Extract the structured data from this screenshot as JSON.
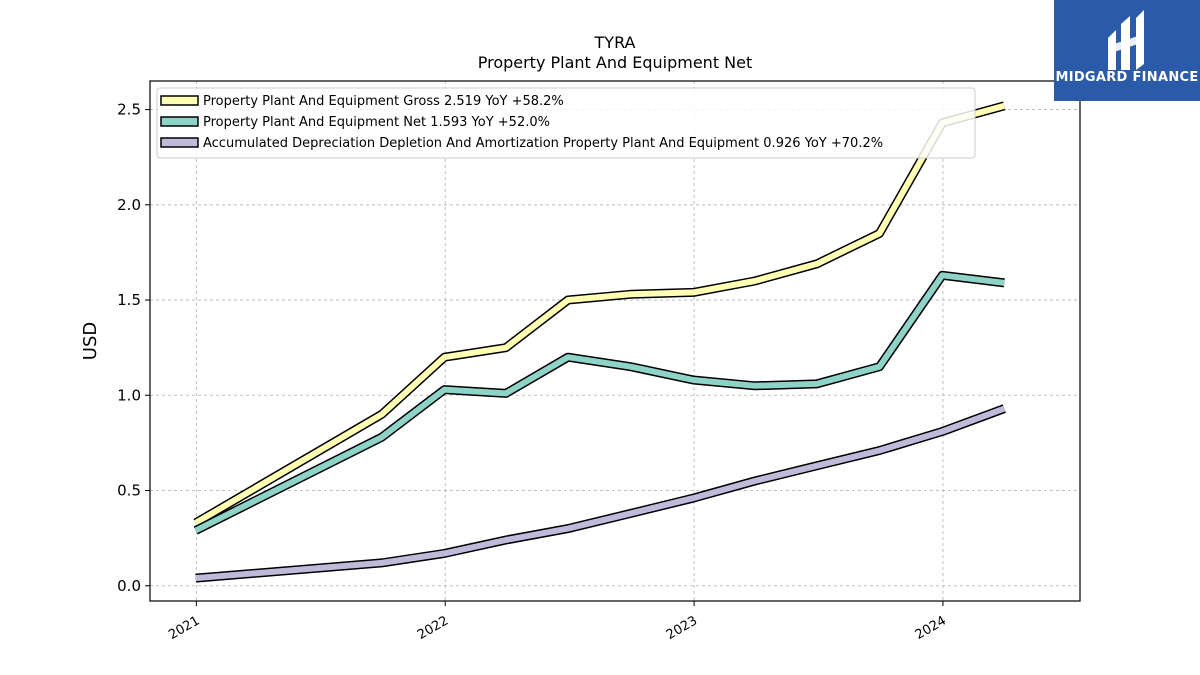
{
  "chart_data": {
    "type": "line",
    "title": "TYRA",
    "subtitle": "Property Plant And Equipment Net",
    "xlabel": "",
    "ylabel": "USD",
    "x_ticks": [
      "2021",
      "2022",
      "2023",
      "2024"
    ],
    "y_ticks": [
      "0.0",
      "0.5",
      "1.0",
      "1.5",
      "2.0",
      "2.5"
    ],
    "xlim": [
      "2020-10-25",
      "2024-07-20"
    ],
    "ylim": [
      -0.08,
      2.65
    ],
    "grid": true,
    "legend_position": "top-left",
    "x": [
      "2020-12-31",
      "2021-09-30",
      "2021-12-31",
      "2022-03-31",
      "2022-06-30",
      "2022-09-30",
      "2022-12-31",
      "2023-03-31",
      "2023-06-30",
      "2023-09-30",
      "2023-12-31",
      "2024-03-31"
    ],
    "series": [
      {
        "name": "Property Plant And Equipment Gross",
        "legend": "Property Plant And Equipment Gross  2.519 YoY +58.2%",
        "color": "#ffffb3",
        "values": [
          0.33,
          0.9,
          1.2,
          1.25,
          1.5,
          1.53,
          1.54,
          1.6,
          1.69,
          1.85,
          2.43,
          2.52
        ]
      },
      {
        "name": "Property Plant And Equipment Net",
        "legend": "Property Plant And Equipment Net  1.593 YoY +52.0%",
        "color": "#8dd3c7",
        "values": [
          0.29,
          0.78,
          1.03,
          1.01,
          1.2,
          1.15,
          1.08,
          1.05,
          1.06,
          1.15,
          1.63,
          1.59
        ]
      },
      {
        "name": "Accumulated Depreciation Depletion And Amortization Property Plant And Equipment",
        "legend": "Accumulated Depreciation Depletion And Amortization Property Plant And Equipment  0.926 YoY +70.2%",
        "color": "#bebada",
        "values": [
          0.04,
          0.12,
          0.17,
          0.24,
          0.3,
          0.38,
          0.46,
          0.55,
          0.63,
          0.71,
          0.81,
          0.93
        ]
      }
    ]
  },
  "logo": {
    "text": "MIDGARD FINANCE",
    "background": "#2b5aa8"
  }
}
